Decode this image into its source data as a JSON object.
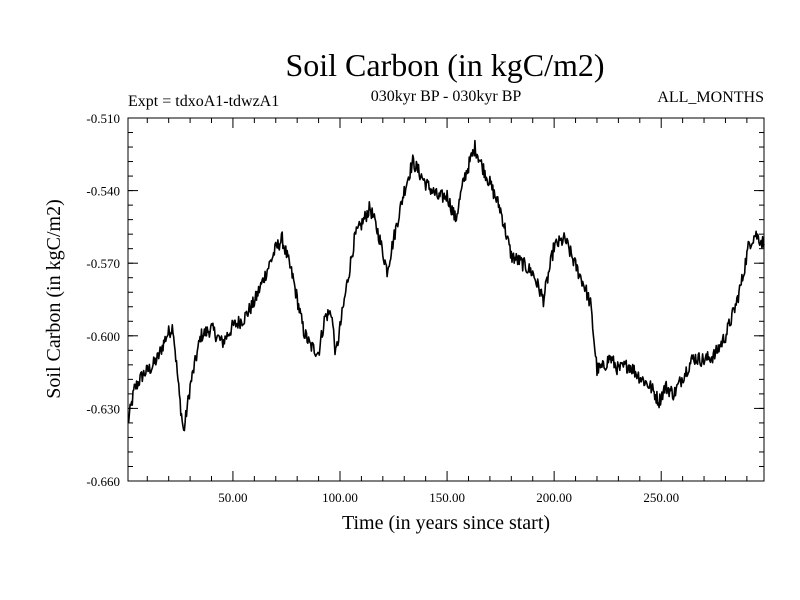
{
  "chart_data": {
    "type": "line",
    "title": "Soil Carbon (in kgC/m2)",
    "subtitle": "030kyr BP - 030kyr BP",
    "left_note": "Expt = tdxoA1-tdwzA1",
    "right_note": "ALL_MONTHS",
    "xlabel": "Time (in years since start)",
    "ylabel": "Soil Carbon (in kgC/m2)",
    "xlim": [
      1,
      298
    ],
    "ylim": [
      -0.66,
      -0.51
    ],
    "x_ticks": [
      50,
      100,
      150,
      200,
      250
    ],
    "x_tick_labels": [
      "50.00",
      "100.00",
      "150.00",
      "200.00",
      "250.00"
    ],
    "y_ticks": [
      -0.51,
      -0.54,
      -0.57,
      -0.6,
      -0.63,
      -0.66
    ],
    "y_tick_labels": [
      "-0.510",
      "-0.540",
      "-0.570",
      "-0.600",
      "-0.630",
      "-0.660"
    ],
    "grid": false,
    "series": [
      {
        "name": "Soil Carbon",
        "color": "#000000",
        "x": [
          1,
          4,
          8,
          12,
          15,
          19,
          22,
          25,
          27,
          30,
          35,
          40,
          45,
          50,
          55,
          60,
          65,
          70,
          73,
          78,
          83,
          86,
          90,
          93,
          96,
          98,
          103,
          107,
          110,
          114,
          118,
          122,
          126,
          130,
          134,
          140,
          146,
          150,
          154,
          158,
          163,
          166,
          170,
          175,
          180,
          185,
          190,
          195,
          200,
          205,
          210,
          214,
          217,
          220,
          223,
          226,
          230,
          235,
          240,
          245,
          249,
          252,
          256,
          260,
          265,
          270,
          275,
          280,
          285,
          288,
          291,
          294,
          298
        ],
        "values": [
          -0.636,
          -0.622,
          -0.616,
          -0.613,
          -0.609,
          -0.6,
          -0.596,
          -0.625,
          -0.64,
          -0.621,
          -0.6,
          -0.597,
          -0.603,
          -0.596,
          -0.593,
          -0.586,
          -0.575,
          -0.564,
          -0.56,
          -0.576,
          -0.598,
          -0.604,
          -0.607,
          -0.592,
          -0.59,
          -0.608,
          -0.58,
          -0.559,
          -0.554,
          -0.547,
          -0.558,
          -0.573,
          -0.556,
          -0.54,
          -0.528,
          -0.537,
          -0.543,
          -0.542,
          -0.552,
          -0.535,
          -0.522,
          -0.529,
          -0.537,
          -0.548,
          -0.567,
          -0.57,
          -0.574,
          -0.585,
          -0.563,
          -0.56,
          -0.571,
          -0.579,
          -0.587,
          -0.614,
          -0.613,
          -0.609,
          -0.614,
          -0.612,
          -0.617,
          -0.621,
          -0.627,
          -0.621,
          -0.624,
          -0.617,
          -0.609,
          -0.61,
          -0.608,
          -0.6,
          -0.587,
          -0.576,
          -0.562,
          -0.558,
          -0.562
        ]
      }
    ]
  }
}
